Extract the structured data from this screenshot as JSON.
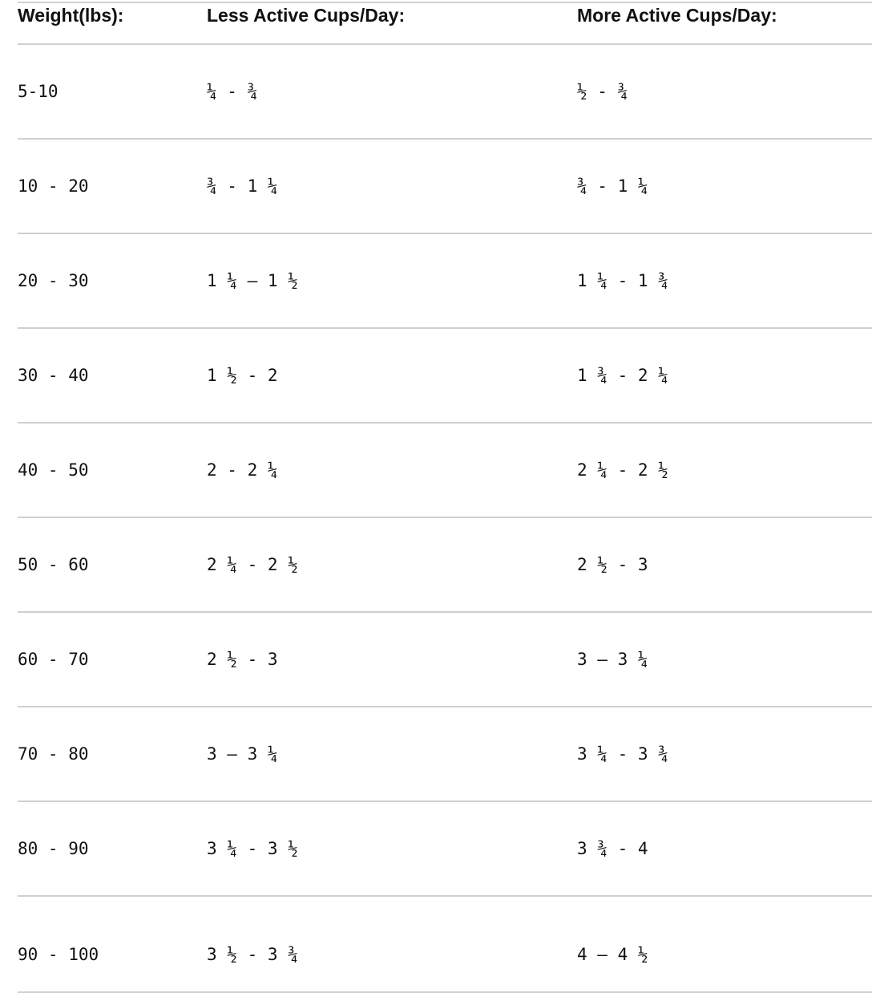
{
  "table": {
    "headers": [
      "Weight(lbs):",
      "Less Active Cups/Day:",
      "More Active Cups/Day:"
    ],
    "rows": [
      [
        "5-10",
        "¼ - ¾",
        "½ - ¾"
      ],
      [
        "10 - 20",
        "¾ - 1 ¼",
        "¾ - 1 ¼"
      ],
      [
        "20 - 30",
        "1 ¼ – 1 ½",
        "1 ¼ - 1 ¾"
      ],
      [
        "30 - 40",
        "1 ½ - 2",
        "1 ¾ - 2 ¼"
      ],
      [
        "40 - 50",
        "2 - 2 ¼",
        "2 ¼ - 2 ½"
      ],
      [
        "50 - 60",
        "2 ¼ - 2 ½",
        "2 ½ - 3"
      ],
      [
        "60 - 70",
        "2 ½ - 3",
        "3 – 3 ¼"
      ],
      [
        "70 - 80",
        "3 – 3 ¼",
        "3 ¼ - 3 ¾"
      ],
      [
        "80 - 90",
        "3 ¼ - 3 ½",
        "3 ¾ - 4"
      ],
      [
        "90 - 100",
        "3 ½ - 3 ¾",
        "4 – 4 ½"
      ]
    ]
  }
}
